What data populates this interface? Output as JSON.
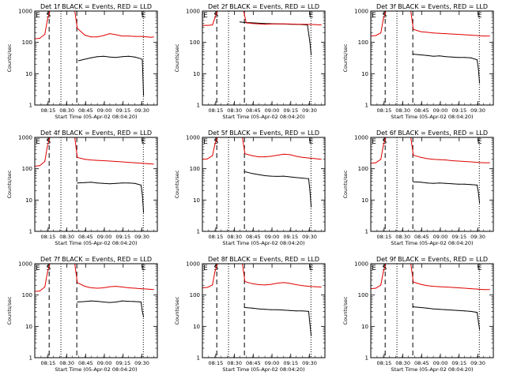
{
  "page": {
    "background": "#ffffff",
    "ylabel": "Counts/sec",
    "xlabel": "Start Time (05-Apr-02 08:04:20)",
    "y_ticks": [
      "1",
      "10",
      "100",
      "1000"
    ],
    "x_ticks": [
      "08:15",
      "08:30",
      "08:45",
      "09:00",
      "09:15",
      "09:30"
    ],
    "markers": {
      "start": "S",
      "end": "E"
    },
    "colors": {
      "events": "#000000",
      "lld": "#e00000",
      "axis": "#000000"
    }
  },
  "chart_data": [
    {
      "type": "line",
      "title": "Det 1f BLACK = Events, RED = LLD",
      "x_unit": "minutes after 08:04:20",
      "xlim": [
        0,
        98
      ],
      "ylim": [
        1,
        1000
      ],
      "yscale": "log",
      "marker_S": 11,
      "marker_E": 87,
      "dashed_lines": [
        11.5,
        33.6
      ],
      "dotted_lines": [
        20.9,
        86.8
      ],
      "series": [
        {
          "name": "Events",
          "x": [
            35,
            40,
            45,
            50,
            55,
            60,
            65,
            70,
            75,
            80,
            85,
            86,
            87
          ],
          "y": [
            26,
            29,
            32,
            35,
            36,
            34,
            33,
            35,
            36,
            34,
            30,
            28,
            2
          ]
        },
        {
          "name": "LLD",
          "x": [
            0,
            4,
            8,
            10,
            12,
            14,
            16,
            30,
            32,
            34,
            40,
            45,
            50,
            55,
            60,
            65,
            70,
            75,
            80,
            85,
            90,
            93,
            95
          ],
          "y": [
            130,
            135,
            180,
            500,
            1000,
            1000,
            1000,
            1000,
            1000,
            280,
            170,
            150,
            150,
            165,
            190,
            175,
            160,
            160,
            155,
            155,
            150,
            145,
            150
          ]
        }
      ]
    },
    {
      "type": "line",
      "title": "Det 2f BLACK = Events, RED = LLD",
      "x_unit": "minutes after 08:04:20",
      "xlim": [
        0,
        98
      ],
      "ylim": [
        1,
        1000
      ],
      "yscale": "log",
      "marker_S": 11,
      "marker_E": 87,
      "dashed_lines": [
        11.5,
        33.6
      ],
      "dotted_lines": [
        20.9,
        86.8
      ],
      "series": [
        {
          "name": "Events",
          "x": [
            30,
            34,
            40,
            45,
            50,
            55,
            60,
            65,
            70,
            75,
            80,
            84,
            86,
            87
          ],
          "y": [
            450,
            430,
            420,
            410,
            400,
            395,
            390,
            385,
            380,
            375,
            370,
            360,
            100,
            40
          ]
        },
        {
          "name": "LLD",
          "x": [
            0,
            4,
            8,
            10,
            12,
            14,
            16,
            30,
            33,
            35,
            40,
            45,
            50,
            55,
            60,
            65,
            70,
            75,
            80,
            85,
            90,
            95
          ],
          "y": [
            350,
            350,
            360,
            600,
            1000,
            1000,
            1000,
            1000,
            1000,
            420,
            400,
            390,
            380,
            385,
            390,
            390,
            385,
            380,
            380,
            375,
            370,
            360
          ]
        }
      ]
    },
    {
      "type": "line",
      "title": "Det 3f BLACK = Events, RED = LLD",
      "x_unit": "minutes after 08:04:20",
      "xlim": [
        0,
        98
      ],
      "ylim": [
        1,
        1000
      ],
      "yscale": "log",
      "marker_S": 11,
      "marker_E": 87,
      "dashed_lines": [
        11.5,
        33.6
      ],
      "dotted_lines": [
        20.9,
        86.8
      ],
      "series": [
        {
          "name": "Events",
          "x": [
            34,
            40,
            45,
            50,
            55,
            60,
            65,
            70,
            75,
            80,
            85,
            86,
            87
          ],
          "y": [
            42,
            40,
            38,
            36,
            37,
            35,
            34,
            33,
            33,
            32,
            28,
            15,
            5
          ]
        },
        {
          "name": "LLD",
          "x": [
            0,
            4,
            8,
            10,
            12,
            14,
            16,
            30,
            32,
            34,
            40,
            45,
            50,
            55,
            60,
            65,
            70,
            75,
            80,
            85,
            90,
            95
          ],
          "y": [
            160,
            165,
            200,
            550,
            1000,
            1000,
            1000,
            1000,
            1000,
            260,
            220,
            210,
            200,
            195,
            190,
            185,
            180,
            175,
            170,
            165,
            160,
            160
          ]
        }
      ]
    },
    {
      "type": "line",
      "title": "Det 4f BLACK = Events, RED = LLD",
      "x_unit": "minutes after 08:04:20",
      "xlim": [
        0,
        98
      ],
      "ylim": [
        1,
        1000
      ],
      "yscale": "log",
      "marker_S": 11,
      "marker_E": 87,
      "dashed_lines": [
        11.5,
        33.6
      ],
      "dotted_lines": [
        20.9,
        86.8
      ],
      "series": [
        {
          "name": "Events",
          "x": [
            34,
            40,
            45,
            50,
            55,
            60,
            65,
            70,
            75,
            80,
            85,
            86,
            87
          ],
          "y": [
            35,
            36,
            37,
            35,
            34,
            33,
            34,
            35,
            35,
            34,
            30,
            15,
            4
          ]
        },
        {
          "name": "LLD",
          "x": [
            0,
            4,
            8,
            10,
            12,
            14,
            16,
            30,
            32,
            34,
            40,
            45,
            50,
            55,
            60,
            65,
            70,
            75,
            80,
            85,
            90,
            95
          ],
          "y": [
            120,
            125,
            170,
            500,
            1000,
            1000,
            1000,
            1000,
            1000,
            230,
            200,
            190,
            185,
            180,
            175,
            170,
            165,
            160,
            155,
            150,
            145,
            140
          ]
        }
      ]
    },
    {
      "type": "line",
      "title": "Det 5f BLACK = Events, RED = LLD",
      "x_unit": "minutes after 08:04:20",
      "xlim": [
        0,
        98
      ],
      "ylim": [
        1,
        1000
      ],
      "yscale": "log",
      "marker_S": 11,
      "marker_E": 87,
      "dashed_lines": [
        11.5,
        33.6
      ],
      "dotted_lines": [
        20.9,
        86.8
      ],
      "series": [
        {
          "name": "Events",
          "x": [
            34,
            40,
            45,
            50,
            55,
            60,
            65,
            70,
            75,
            80,
            85,
            86,
            87
          ],
          "y": [
            80,
            70,
            65,
            60,
            58,
            57,
            58,
            55,
            52,
            50,
            48,
            20,
            6
          ]
        },
        {
          "name": "LLD",
          "x": [
            0,
            4,
            8,
            10,
            12,
            14,
            16,
            30,
            32,
            34,
            40,
            45,
            50,
            55,
            60,
            65,
            70,
            75,
            80,
            85,
            90,
            95
          ],
          "y": [
            200,
            205,
            260,
            600,
            1000,
            1000,
            1000,
            1000,
            1000,
            300,
            260,
            240,
            240,
            250,
            270,
            290,
            280,
            250,
            230,
            220,
            210,
            200
          ]
        }
      ]
    },
    {
      "type": "line",
      "title": "Det 6f BLACK = Events, RED = LLD",
      "x_unit": "minutes after 08:04:20",
      "xlim": [
        0,
        98
      ],
      "ylim": [
        1,
        1000
      ],
      "yscale": "log",
      "marker_S": 11,
      "marker_E": 87,
      "dashed_lines": [
        11.5,
        33.6
      ],
      "dotted_lines": [
        20.9,
        86.8
      ],
      "series": [
        {
          "name": "Events",
          "x": [
            34,
            40,
            45,
            50,
            55,
            60,
            65,
            70,
            75,
            80,
            85,
            86,
            87
          ],
          "y": [
            38,
            37,
            35,
            34,
            35,
            34,
            33,
            32,
            32,
            31,
            30,
            18,
            8
          ]
        },
        {
          "name": "LLD",
          "x": [
            0,
            4,
            8,
            10,
            12,
            14,
            16,
            30,
            32,
            34,
            40,
            45,
            50,
            55,
            60,
            65,
            70,
            75,
            80,
            85,
            90,
            95
          ],
          "y": [
            150,
            155,
            200,
            550,
            1000,
            1000,
            1000,
            1000,
            1000,
            270,
            230,
            210,
            200,
            195,
            190,
            180,
            175,
            170,
            165,
            160,
            155,
            155
          ]
        }
      ]
    },
    {
      "type": "line",
      "title": "Det 7f BLACK = Events, RED = LLD",
      "x_unit": "minutes after 08:04:20",
      "xlim": [
        0,
        98
      ],
      "ylim": [
        1,
        1000
      ],
      "yscale": "log",
      "marker_S": 11,
      "marker_E": 87,
      "dashed_lines": [
        11.5,
        33.6
      ],
      "dotted_lines": [
        20.9,
        86.8
      ],
      "series": [
        {
          "name": "Events",
          "x": [
            34,
            40,
            45,
            50,
            55,
            60,
            65,
            70,
            75,
            80,
            85,
            86,
            87
          ],
          "y": [
            60,
            62,
            65,
            63,
            60,
            58,
            60,
            65,
            63,
            62,
            60,
            30,
            20
          ]
        },
        {
          "name": "LLD",
          "x": [
            0,
            4,
            8,
            10,
            12,
            14,
            16,
            30,
            32,
            34,
            40,
            45,
            50,
            55,
            60,
            65,
            70,
            75,
            80,
            85,
            90,
            95
          ],
          "y": [
            130,
            135,
            180,
            500,
            1000,
            1000,
            1000,
            1000,
            1000,
            250,
            190,
            170,
            165,
            170,
            185,
            190,
            180,
            170,
            165,
            160,
            155,
            150
          ]
        }
      ]
    },
    {
      "type": "line",
      "title": "Det 8f BLACK = Events, RED = LLD",
      "x_unit": "minutes after 08:04:20",
      "xlim": [
        0,
        98
      ],
      "ylim": [
        1,
        1000
      ],
      "yscale": "log",
      "marker_S": 11,
      "marker_E": 87,
      "dashed_lines": [
        11.5,
        33.6
      ],
      "dotted_lines": [
        20.9,
        86.8
      ],
      "series": [
        {
          "name": "Events",
          "x": [
            34,
            40,
            45,
            50,
            55,
            60,
            65,
            70,
            75,
            80,
            85,
            86,
            87
          ],
          "y": [
            40,
            38,
            36,
            35,
            34,
            34,
            33,
            32,
            31,
            31,
            30,
            12,
            5
          ]
        },
        {
          "name": "LLD",
          "x": [
            0,
            4,
            8,
            10,
            12,
            14,
            16,
            30,
            32,
            34,
            40,
            45,
            50,
            55,
            60,
            65,
            70,
            75,
            80,
            85,
            90,
            95
          ],
          "y": [
            170,
            175,
            210,
            550,
            1000,
            1000,
            1000,
            1000,
            1000,
            270,
            230,
            215,
            210,
            220,
            240,
            250,
            235,
            215,
            200,
            190,
            185,
            180
          ]
        }
      ]
    },
    {
      "type": "line",
      "title": "Det 9f BLACK = Events, RED = LLD",
      "x_unit": "minutes after 08:04:20",
      "xlim": [
        0,
        98
      ],
      "ylim": [
        1,
        1000
      ],
      "yscale": "log",
      "marker_S": 11,
      "marker_E": 87,
      "dashed_lines": [
        11.5,
        33.6
      ],
      "dotted_lines": [
        20.9,
        86.8
      ],
      "series": [
        {
          "name": "Events",
          "x": [
            34,
            40,
            45,
            50,
            55,
            60,
            65,
            70,
            75,
            80,
            85,
            86,
            87
          ],
          "y": [
            42,
            40,
            38,
            36,
            35,
            34,
            33,
            32,
            31,
            30,
            28,
            15,
            8
          ]
        },
        {
          "name": "LLD",
          "x": [
            0,
            4,
            8,
            10,
            12,
            14,
            16,
            30,
            32,
            34,
            40,
            45,
            50,
            55,
            60,
            65,
            70,
            75,
            80,
            85,
            90,
            95
          ],
          "y": [
            160,
            165,
            210,
            550,
            1000,
            1000,
            1000,
            1000,
            1000,
            260,
            220,
            200,
            190,
            185,
            180,
            175,
            170,
            165,
            160,
            155,
            150,
            150
          ]
        }
      ]
    }
  ]
}
